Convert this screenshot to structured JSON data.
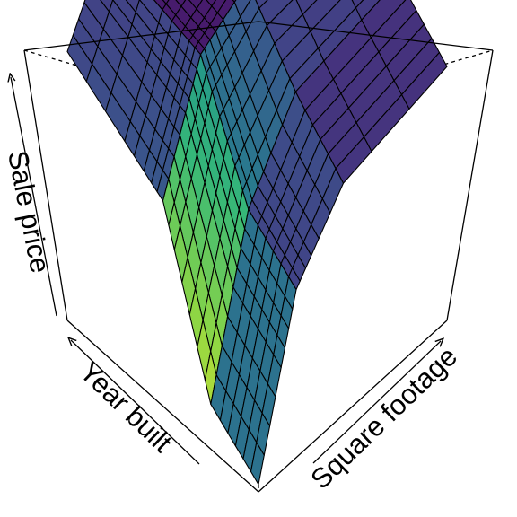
{
  "chart_data": {
    "type": "surface",
    "title": "",
    "xlabel": "Square footage",
    "ylabel": "Year built",
    "zlabel": "Sale price",
    "ticks": false,
    "box": true,
    "colormap": "viridis",
    "palette": [
      "#440154",
      "#3b528b",
      "#21908c",
      "#5dc863",
      "#fde725"
    ],
    "columns": [
      "Square footage",
      "Year built",
      "Sale price"
    ],
    "rows": [
      [
        0.0,
        0.0,
        0.02
      ],
      [
        0.0,
        0.25,
        0.12
      ],
      [
        0.0,
        0.5,
        0.55
      ],
      [
        0.0,
        1.0,
        0.72
      ],
      [
        0.2,
        0.0,
        0.45
      ],
      [
        0.2,
        0.25,
        0.55
      ],
      [
        0.2,
        0.5,
        0.85
      ],
      [
        0.2,
        1.0,
        0.92
      ],
      [
        0.45,
        0.0,
        0.62
      ],
      [
        0.45,
        0.25,
        0.75
      ],
      [
        0.45,
        0.5,
        0.93
      ],
      [
        0.45,
        1.0,
        1.0
      ],
      [
        1.0,
        0.0,
        0.68
      ],
      [
        1.0,
        0.25,
        0.8
      ],
      [
        1.0,
        0.5,
        0.94
      ],
      [
        1.0,
        1.0,
        1.0
      ]
    ]
  }
}
